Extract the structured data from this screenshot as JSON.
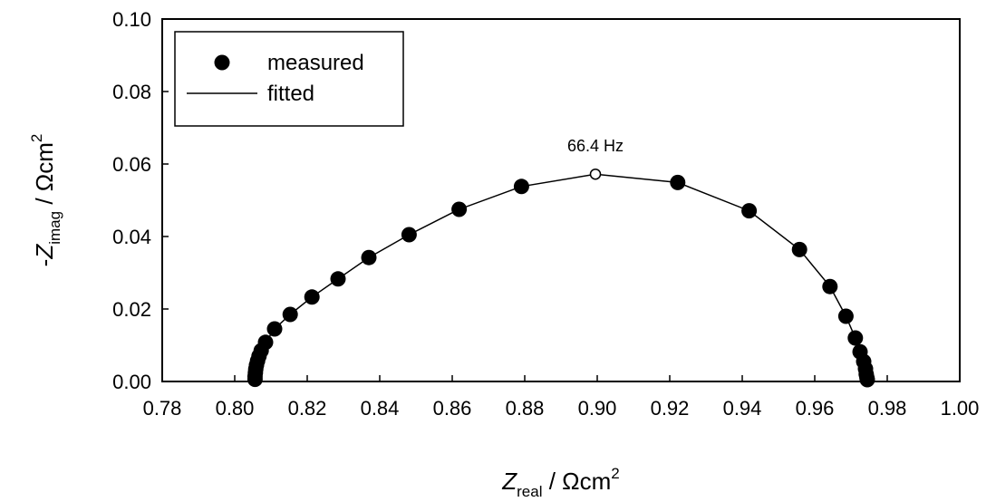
{
  "chart_data": {
    "type": "scatter",
    "title": "",
    "xlabel": {
      "var": "Z",
      "sub": "real",
      "unit": " / Ωcm",
      "sup": "2"
    },
    "ylabel": {
      "prefix": "-",
      "var": "Z",
      "sub": "imag",
      "unit": " / Ωcm",
      "sup": "2"
    },
    "xlim": [
      0.78,
      1.0
    ],
    "ylim": [
      0.0,
      0.1
    ],
    "xticks": [
      "0.78",
      "0.80",
      "0.82",
      "0.84",
      "0.86",
      "0.88",
      "0.90",
      "0.92",
      "0.94",
      "0.96",
      "0.98",
      "1.00"
    ],
    "yticks": [
      "0.00",
      "0.02",
      "0.04",
      "0.06",
      "0.08",
      "0.10"
    ],
    "grid": false,
    "legend_position": "top-left",
    "series": [
      {
        "name": "measured",
        "style": "filled-circle",
        "color": "#000000",
        "points": [
          [
            0.8056,
            0.0006
          ],
          [
            0.8056,
            0.0014
          ],
          [
            0.8057,
            0.0024
          ],
          [
            0.8058,
            0.0034
          ],
          [
            0.806,
            0.0045
          ],
          [
            0.8063,
            0.0057
          ],
          [
            0.8067,
            0.007
          ],
          [
            0.8073,
            0.0085
          ],
          [
            0.8085,
            0.0108
          ],
          [
            0.811,
            0.0145
          ],
          [
            0.8153,
            0.0185
          ],
          [
            0.8213,
            0.0233
          ],
          [
            0.8285,
            0.0283
          ],
          [
            0.837,
            0.0342
          ],
          [
            0.8481,
            0.0405
          ],
          [
            0.8619,
            0.0475
          ],
          [
            0.8791,
            0.0538
          ],
          [
            0.9222,
            0.0549
          ],
          [
            0.9419,
            0.0471
          ],
          [
            0.9558,
            0.0364
          ],
          [
            0.9642,
            0.0262
          ],
          [
            0.9686,
            0.018
          ],
          [
            0.9712,
            0.012
          ],
          [
            0.9725,
            0.0082
          ],
          [
            0.9735,
            0.0055
          ],
          [
            0.974,
            0.0035
          ],
          [
            0.9742,
            0.002
          ],
          [
            0.9744,
            0.001
          ],
          [
            0.9745,
            0.0005
          ]
        ]
      },
      {
        "name": "fitted",
        "style": "line",
        "color": "#000000",
        "points": [
          [
            0.8055,
            0.0
          ],
          [
            0.8056,
            0.0014
          ],
          [
            0.8058,
            0.0034
          ],
          [
            0.8063,
            0.0057
          ],
          [
            0.8073,
            0.0085
          ],
          [
            0.8085,
            0.0108
          ],
          [
            0.811,
            0.0145
          ],
          [
            0.8153,
            0.0185
          ],
          [
            0.8213,
            0.0233
          ],
          [
            0.8285,
            0.0283
          ],
          [
            0.837,
            0.0342
          ],
          [
            0.8481,
            0.0405
          ],
          [
            0.8619,
            0.0475
          ],
          [
            0.8791,
            0.0538
          ],
          [
            0.8995,
            0.0572
          ],
          [
            0.9222,
            0.0549
          ],
          [
            0.9419,
            0.0471
          ],
          [
            0.9558,
            0.0364
          ],
          [
            0.9642,
            0.0262
          ],
          [
            0.9686,
            0.018
          ],
          [
            0.9712,
            0.012
          ],
          [
            0.9725,
            0.0082
          ],
          [
            0.9735,
            0.0055
          ],
          [
            0.9742,
            0.002
          ],
          [
            0.9745,
            0.0
          ]
        ]
      }
    ],
    "highlight_point": {
      "x": 0.8995,
      "y": 0.0572,
      "style": "open-circle"
    },
    "annotations": [
      {
        "text": "66.4 Hz",
        "x": 0.8995,
        "y": 0.0572
      }
    ]
  }
}
